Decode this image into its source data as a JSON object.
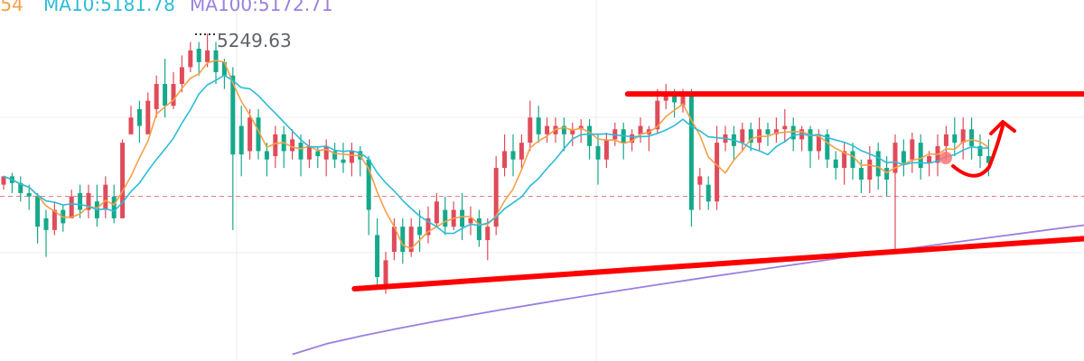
{
  "chart_data": {
    "type": "candlestick",
    "legend": [
      {
        "key": "ma5",
        "text": ".54",
        "color": "#f5a04a"
      },
      {
        "key": "ma10",
        "text": "MA10:5181.78",
        "color": "#2bbcd8"
      },
      {
        "key": "ma100",
        "text": "MA100:5172.71",
        "color": "#9b7fe0"
      }
    ],
    "annotations": {
      "peak_value": "5249.63",
      "current_price_line": 5158
    },
    "ylim": [
      5060,
      5275
    ],
    "candles": [
      [
        5165,
        5170,
        5162,
        5168
      ],
      [
        5170,
        5166,
        5160,
        5172
      ],
      [
        5166,
        5160,
        5155,
        5170
      ],
      [
        5160,
        5158,
        5150,
        5165
      ],
      [
        5158,
        5140,
        5130,
        5160
      ],
      [
        5145,
        5138,
        5122,
        5150
      ],
      [
        5138,
        5150,
        5135,
        5155
      ],
      [
        5150,
        5142,
        5137,
        5153
      ],
      [
        5145,
        5158,
        5145,
        5162
      ],
      [
        5160,
        5150,
        5145,
        5165
      ],
      [
        5150,
        5160,
        5145,
        5165
      ],
      [
        5155,
        5145,
        5140,
        5165
      ],
      [
        5150,
        5165,
        5145,
        5170
      ],
      [
        5158,
        5145,
        5142,
        5165
      ],
      [
        5145,
        5190,
        5145,
        5192
      ],
      [
        5195,
        5205,
        5195,
        5212
      ],
      [
        5210,
        5200,
        5190,
        5215
      ],
      [
        5195,
        5215,
        5195,
        5220
      ],
      [
        5210,
        5225,
        5205,
        5230
      ],
      [
        5225,
        5212,
        5205,
        5240
      ],
      [
        5212,
        5225,
        5210,
        5232
      ],
      [
        5225,
        5235,
        5220,
        5242
      ],
      [
        5235,
        5245,
        5232,
        5250
      ],
      [
        5246,
        5238,
        5230,
        5250
      ],
      [
        5238,
        5245,
        5235,
        5255
      ],
      [
        5245,
        5232,
        5225,
        5250
      ],
      [
        5238,
        5230,
        5222,
        5240
      ],
      [
        5230,
        5183,
        5138,
        5235
      ],
      [
        5200,
        5183,
        5170,
        5212
      ],
      [
        5185,
        5205,
        5180,
        5210
      ],
      [
        5205,
        5185,
        5180,
        5210
      ],
      [
        5185,
        5180,
        5170,
        5190
      ],
      [
        5182,
        5195,
        5175,
        5200
      ],
      [
        5195,
        5185,
        5175,
        5200
      ],
      [
        5185,
        5192,
        5180,
        5198
      ],
      [
        5190,
        5180,
        5170,
        5195
      ],
      [
        5180,
        5188,
        5175,
        5192
      ],
      [
        5185,
        5182,
        5175,
        5188
      ],
      [
        5180,
        5188,
        5170,
        5192
      ],
      [
        5185,
        5180,
        5175,
        5190
      ],
      [
        5180,
        5178,
        5172,
        5190
      ],
      [
        5178,
        5185,
        5170,
        5190
      ],
      [
        5185,
        5180,
        5170,
        5188
      ],
      [
        5180,
        5150,
        5135,
        5182
      ],
      [
        5135,
        5110,
        5105,
        5145
      ],
      [
        5105,
        5120,
        5100,
        5125
      ],
      [
        5125,
        5140,
        5120,
        5145
      ],
      [
        5140,
        5125,
        5118,
        5145
      ],
      [
        5125,
        5140,
        5122,
        5145
      ],
      [
        5140,
        5135,
        5125,
        5150
      ],
      [
        5135,
        5145,
        5130,
        5152
      ],
      [
        5142,
        5155,
        5140,
        5160
      ],
      [
        5150,
        5140,
        5135,
        5158
      ],
      [
        5140,
        5150,
        5138,
        5155
      ],
      [
        5150,
        5140,
        5132,
        5160
      ],
      [
        5142,
        5145,
        5135,
        5152
      ],
      [
        5145,
        5132,
        5128,
        5150
      ],
      [
        5132,
        5140,
        5120,
        5145
      ],
      [
        5140,
        5175,
        5135,
        5182
      ],
      [
        5175,
        5185,
        5170,
        5195
      ],
      [
        5185,
        5180,
        5170,
        5195
      ],
      [
        5180,
        5190,
        5175,
        5195
      ],
      [
        5190,
        5205,
        5185,
        5215
      ],
      [
        5205,
        5195,
        5190,
        5212
      ],
      [
        5195,
        5200,
        5190,
        5205
      ],
      [
        5195,
        5200,
        5190,
        5205
      ],
      [
        5200,
        5195,
        5185,
        5205
      ],
      [
        5195,
        5198,
        5188,
        5202
      ],
      [
        5198,
        5200,
        5190,
        5204
      ],
      [
        5200,
        5188,
        5180,
        5204
      ],
      [
        5188,
        5180,
        5165,
        5195
      ],
      [
        5180,
        5192,
        5175,
        5196
      ],
      [
        5192,
        5198,
        5188,
        5202
      ],
      [
        5198,
        5190,
        5180,
        5202
      ],
      [
        5190,
        5195,
        5185,
        5198
      ],
      [
        5195,
        5200,
        5190,
        5205
      ],
      [
        5195,
        5198,
        5185,
        5200
      ],
      [
        5198,
        5215,
        5195,
        5222
      ],
      [
        5215,
        5220,
        5210,
        5225
      ],
      [
        5218,
        5214,
        5205,
        5222
      ],
      [
        5212,
        5218,
        5208,
        5222
      ],
      [
        5218,
        5150,
        5140,
        5222
      ],
      [
        5165,
        5170,
        5150,
        5175
      ],
      [
        5165,
        5155,
        5150,
        5170
      ],
      [
        5155,
        5190,
        5150,
        5200
      ],
      [
        5190,
        5195,
        5185,
        5200
      ],
      [
        5195,
        5188,
        5180,
        5200
      ],
      [
        5190,
        5198,
        5185,
        5202
      ],
      [
        5198,
        5190,
        5185,
        5202
      ],
      [
        5190,
        5198,
        5185,
        5205
      ],
      [
        5198,
        5195,
        5188,
        5202
      ],
      [
        5195,
        5198,
        5190,
        5205
      ],
      [
        5198,
        5200,
        5190,
        5210
      ],
      [
        5200,
        5192,
        5185,
        5205
      ],
      [
        5192,
        5198,
        5185,
        5200
      ],
      [
        5198,
        5185,
        5175,
        5200
      ],
      [
        5185,
        5195,
        5180,
        5198
      ],
      [
        5195,
        5180,
        5175,
        5198
      ],
      [
        5180,
        5175,
        5168,
        5185
      ],
      [
        5175,
        5185,
        5165,
        5190
      ],
      [
        5185,
        5175,
        5168,
        5190
      ],
      [
        5175,
        5168,
        5160,
        5180
      ],
      [
        5168,
        5180,
        5160,
        5188
      ],
      [
        5185,
        5170,
        5162,
        5190
      ],
      [
        5175,
        5168,
        5158,
        5182
      ],
      [
        5172,
        5190,
        5125,
        5195
      ],
      [
        5185,
        5178,
        5170,
        5192
      ],
      [
        5180,
        5192,
        5172,
        5196
      ],
      [
        5190,
        5175,
        5168,
        5195
      ],
      [
        5178,
        5182,
        5170,
        5185
      ],
      [
        5178,
        5188,
        5170,
        5195
      ],
      [
        5188,
        5195,
        5180,
        5200
      ],
      [
        5195,
        5190,
        5182,
        5205
      ],
      [
        5190,
        5198,
        5180,
        5205
      ],
      [
        5198,
        5188,
        5180,
        5205
      ],
      [
        5188,
        5182,
        5175,
        5195
      ],
      [
        5182,
        5178,
        5170,
        5192
      ]
    ],
    "ma100_endpoints": [
      [
        0,
        5064
      ],
      [
        123,
        5160
      ]
    ],
    "drawings": {
      "resistance_line": {
        "y": 5219,
        "from_candle": 82,
        "to_candle": 140
      },
      "support_line": {
        "from": [
          46,
          5103
        ],
        "to": [
          134,
          5133
        ]
      },
      "up_arrow": {
        "at_candle": 125,
        "target_y": 5208
      }
    }
  }
}
